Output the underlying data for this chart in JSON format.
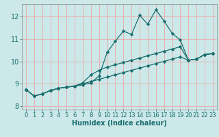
{
  "title": "",
  "xlabel": "Humidex (Indice chaleur)",
  "bg_color": "#cce8e8",
  "grid_color": "#e8b0b0",
  "line_color": "#1a6e6e",
  "xlim": [
    -0.5,
    23.5
  ],
  "ylim": [
    7.85,
    12.55
  ],
  "xticks": [
    0,
    1,
    2,
    3,
    4,
    5,
    6,
    7,
    8,
    9,
    10,
    11,
    12,
    13,
    14,
    15,
    16,
    17,
    18,
    19,
    20,
    21,
    22,
    23
  ],
  "yticks": [
    8,
    9,
    10,
    11,
    12
  ],
  "line1_x": [
    0,
    1,
    2,
    3,
    4,
    5,
    6,
    7,
    8,
    9,
    10,
    11,
    12,
    13,
    14,
    15,
    16,
    17,
    18,
    19,
    20,
    21,
    22,
    23
  ],
  "line1_y": [
    8.75,
    8.45,
    8.55,
    8.7,
    8.8,
    8.85,
    8.9,
    8.95,
    9.05,
    9.35,
    10.4,
    10.9,
    11.35,
    11.2,
    12.05,
    11.65,
    12.3,
    11.8,
    11.25,
    10.95,
    10.05,
    10.1,
    10.3,
    10.35
  ],
  "line2_x": [
    0,
    1,
    2,
    3,
    4,
    5,
    6,
    7,
    8,
    9,
    10,
    11,
    12,
    13,
    14,
    15,
    16,
    17,
    18,
    19,
    20,
    21,
    22,
    23
  ],
  "line2_y": [
    8.75,
    8.45,
    8.55,
    8.7,
    8.8,
    8.85,
    8.9,
    9.05,
    9.4,
    9.6,
    9.75,
    9.85,
    9.95,
    10.05,
    10.15,
    10.25,
    10.35,
    10.45,
    10.55,
    10.65,
    10.05,
    10.1,
    10.3,
    10.35
  ],
  "line3_x": [
    0,
    1,
    2,
    3,
    4,
    5,
    6,
    7,
    8,
    9,
    10,
    11,
    12,
    13,
    14,
    15,
    16,
    17,
    18,
    19,
    20,
    21,
    22,
    23
  ],
  "line3_y": [
    8.75,
    8.45,
    8.55,
    8.7,
    8.8,
    8.85,
    8.9,
    9.0,
    9.1,
    9.2,
    9.3,
    9.4,
    9.5,
    9.6,
    9.7,
    9.8,
    9.9,
    10.0,
    10.1,
    10.2,
    10.05,
    10.1,
    10.3,
    10.35
  ],
  "tick_color": "#1a6e6e",
  "xlabel_fontsize": 7,
  "tick_fontsize": 6
}
